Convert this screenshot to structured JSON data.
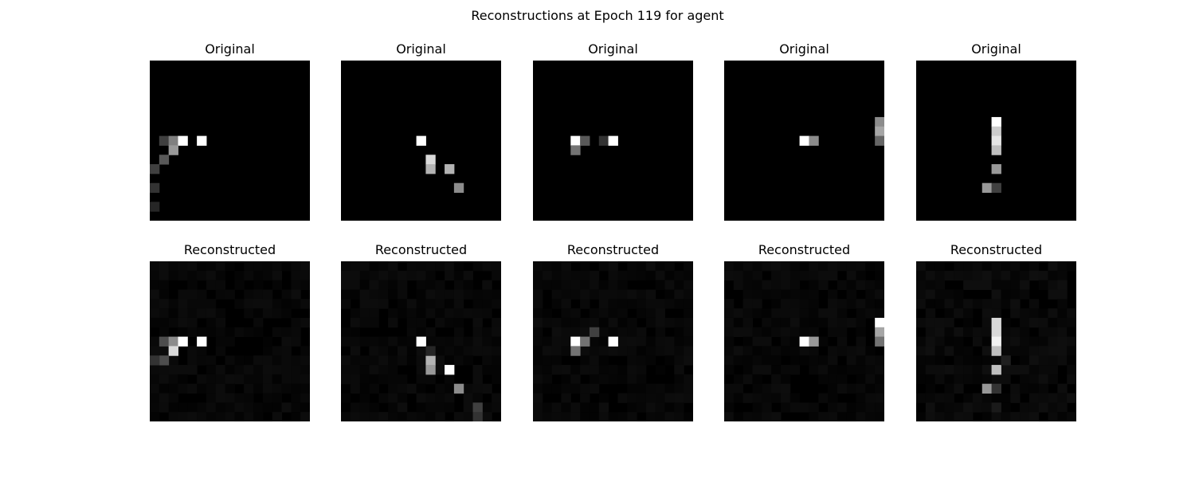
{
  "title": "Reconstructions at Epoch 119 for agent",
  "original_label": "Original",
  "reconstructed_label": "Reconstructed",
  "grid_size": 17,
  "panels": [
    {
      "original": [
        [
          1,
          8,
          0.25
        ],
        [
          2,
          8,
          0.5
        ],
        [
          3,
          8,
          1.0
        ],
        [
          5,
          8,
          1.0
        ],
        [
          2,
          9,
          0.6
        ],
        [
          1,
          10,
          0.35
        ],
        [
          0,
          11,
          0.25
        ],
        [
          -2,
          13,
          0.2
        ],
        [
          -2,
          15,
          0.15
        ]
      ],
      "reconstructed": [
        [
          1,
          8,
          0.3
        ],
        [
          2,
          8,
          0.55
        ],
        [
          3,
          8,
          1.0
        ],
        [
          5,
          8,
          1.0
        ],
        [
          2,
          9,
          0.85
        ],
        [
          1,
          10,
          0.3
        ],
        [
          0,
          10,
          0.2
        ]
      ],
      "recon_noise": 0.05
    },
    {
      "original": [
        [
          8,
          8,
          1.0
        ],
        [
          9,
          10,
          0.85
        ],
        [
          9,
          11,
          0.7
        ],
        [
          11,
          11,
          0.7
        ],
        [
          12,
          13,
          0.55
        ]
      ],
      "reconstructed": [
        [
          8,
          8,
          1.0
        ],
        [
          9,
          10,
          0.7
        ],
        [
          9,
          11,
          0.6
        ],
        [
          11,
          11,
          1.0
        ],
        [
          12,
          13,
          0.55
        ],
        [
          14,
          15,
          0.25
        ],
        [
          14,
          16,
          0.2
        ],
        [
          9,
          9,
          0.15
        ]
      ],
      "recon_noise": 0.05
    },
    {
      "original": [
        [
          4,
          8,
          1.0
        ],
        [
          5,
          8,
          0.35
        ],
        [
          4,
          9,
          0.45
        ],
        [
          7,
          8,
          0.2
        ],
        [
          8,
          8,
          1.0
        ]
      ],
      "reconstructed": [
        [
          4,
          8,
          1.0
        ],
        [
          5,
          8,
          0.45
        ],
        [
          4,
          9,
          0.45
        ],
        [
          6,
          7,
          0.25
        ],
        [
          8,
          8,
          1.0
        ]
      ],
      "recon_noise": 0.05
    },
    {
      "original": [
        [
          8,
          8,
          1.0
        ],
        [
          9,
          8,
          0.55
        ],
        [
          16,
          6,
          0.55
        ],
        [
          16,
          7,
          0.65
        ],
        [
          16,
          8,
          0.4
        ]
      ],
      "reconstructed": [
        [
          8,
          8,
          1.0
        ],
        [
          9,
          8,
          0.6
        ],
        [
          16,
          6,
          1.0
        ],
        [
          16,
          7,
          0.65
        ],
        [
          16,
          8,
          0.45
        ]
      ],
      "recon_noise": 0.05
    },
    {
      "original": [
        [
          8,
          6,
          1.0
        ],
        [
          8,
          7,
          0.8
        ],
        [
          8,
          8,
          0.9
        ],
        [
          8,
          9,
          0.75
        ],
        [
          8,
          11,
          0.6
        ],
        [
          7,
          13,
          0.6
        ],
        [
          8,
          13,
          0.25
        ]
      ],
      "reconstructed": [
        [
          8,
          6,
          0.85
        ],
        [
          8,
          7,
          0.85
        ],
        [
          8,
          8,
          0.95
        ],
        [
          8,
          9,
          0.75
        ],
        [
          8,
          11,
          0.75
        ],
        [
          7,
          13,
          0.6
        ],
        [
          8,
          13,
          0.2
        ],
        [
          8,
          15,
          0.1
        ],
        [
          9,
          10,
          0.12
        ]
      ],
      "recon_noise": 0.06
    }
  ]
}
